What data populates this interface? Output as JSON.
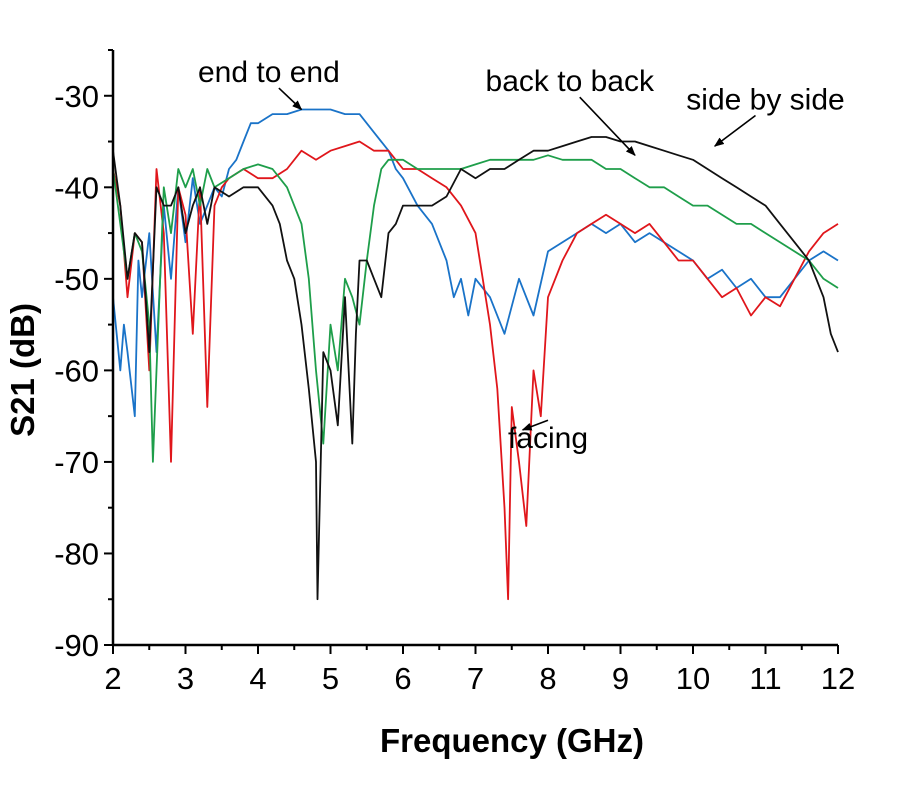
{
  "chart_data": {
    "type": "line",
    "title": "",
    "xlabel": "Frequency (GHz)",
    "ylabel": "S21 (dB)",
    "xlim": [
      2,
      12
    ],
    "ylim": [
      -90,
      -25
    ],
    "xticks": [
      2,
      3,
      4,
      5,
      6,
      7,
      8,
      9,
      10,
      11,
      12
    ],
    "yticks": [
      -90,
      -80,
      -70,
      -60,
      -50,
      -40,
      -30
    ],
    "grid": false,
    "legend": "none",
    "annotations": [
      {
        "text": "end to end",
        "x": 4.15,
        "y": -28.5,
        "ax": 4.6,
        "ay": -31.5
      },
      {
        "text": "back to back",
        "x": 8.3,
        "y": -29.5,
        "ax": 9.2,
        "ay": -36.5
      },
      {
        "text": "side by side",
        "x": 11.0,
        "y": -31.5,
        "ax": 10.3,
        "ay": -35.5
      },
      {
        "text": "facing",
        "x": 8.0,
        "y": -68.5,
        "ax": 7.65,
        "ay": -66.5
      }
    ],
    "series": [
      {
        "color": "#1a73c8",
        "x": [
          2.0,
          2.1,
          2.15,
          2.2,
          2.3,
          2.35,
          2.4,
          2.5,
          2.6,
          2.7,
          2.8,
          2.9,
          3.0,
          3.1,
          3.2,
          3.3,
          3.4,
          3.5,
          3.6,
          3.7,
          3.8,
          3.9,
          4.0,
          4.2,
          4.4,
          4.6,
          4.8,
          5.0,
          5.2,
          5.4,
          5.6,
          5.8,
          5.9,
          6.0,
          6.2,
          6.4,
          6.6,
          6.7,
          6.8,
          6.9,
          7.0,
          7.2,
          7.4,
          7.6,
          7.8,
          8.0,
          8.2,
          8.4,
          8.6,
          8.8,
          9.0,
          9.2,
          9.4,
          9.6,
          9.8,
          10.0,
          10.2,
          10.4,
          10.6,
          10.8,
          11.0,
          11.2,
          11.4,
          11.6,
          11.8,
          12.0
        ],
        "y": [
          -52,
          -60,
          -55,
          -58,
          -65,
          -48,
          -52,
          -45,
          -58,
          -42,
          -50,
          -40,
          -46,
          -39,
          -44,
          -42,
          -40,
          -41,
          -38,
          -37,
          -35,
          -33,
          -33,
          -32,
          -32,
          -31.5,
          -31.5,
          -31.5,
          -32,
          -32,
          -34,
          -36,
          -38,
          -39,
          -42,
          -44,
          -48,
          -52,
          -50,
          -54,
          -50,
          -52,
          -56,
          -50,
          -54,
          -47,
          -46,
          -45,
          -44,
          -45,
          -44,
          -46,
          -45,
          -46,
          -47,
          -48,
          -50,
          -49,
          -51,
          -50,
          -52,
          -52,
          -50,
          -48,
          -47,
          -48
        ]
      },
      {
        "color": "#e0161b",
        "x": [
          2.0,
          2.1,
          2.2,
          2.3,
          2.4,
          2.5,
          2.6,
          2.7,
          2.8,
          2.9,
          3.0,
          3.1,
          3.2,
          3.3,
          3.4,
          3.5,
          3.6,
          3.8,
          4.0,
          4.2,
          4.4,
          4.6,
          4.8,
          5.0,
          5.2,
          5.4,
          5.6,
          5.8,
          6.0,
          6.2,
          6.4,
          6.6,
          6.8,
          7.0,
          7.2,
          7.3,
          7.4,
          7.45,
          7.5,
          7.6,
          7.7,
          7.8,
          7.9,
          8.0,
          8.2,
          8.4,
          8.6,
          8.8,
          9.0,
          9.2,
          9.4,
          9.6,
          9.8,
          10.0,
          10.2,
          10.4,
          10.6,
          10.8,
          11.0,
          11.2,
          11.4,
          11.6,
          11.8,
          12.0
        ],
        "y": [
          -38,
          -42,
          -52,
          -45,
          -46,
          -60,
          -38,
          -45,
          -70,
          -40,
          -43,
          -56,
          -40,
          -64,
          -42,
          -40,
          -39,
          -38,
          -39,
          -39,
          -38,
          -36,
          -37,
          -36,
          -35.5,
          -35,
          -36,
          -36,
          -38,
          -38,
          -39,
          -40,
          -42,
          -45,
          -55,
          -62,
          -75,
          -85,
          -64,
          -70,
          -77,
          -60,
          -65,
          -52,
          -48,
          -45,
          -44,
          -43,
          -44,
          -45,
          -44,
          -46,
          -48,
          -48,
          -50,
          -52,
          -51,
          -54,
          -52,
          -53,
          -50,
          -47,
          -45,
          -44
        ]
      },
      {
        "color": "#1e9e4a",
        "x": [
          2.0,
          2.1,
          2.2,
          2.3,
          2.4,
          2.5,
          2.55,
          2.6,
          2.7,
          2.8,
          2.9,
          3.0,
          3.1,
          3.2,
          3.3,
          3.4,
          3.6,
          3.8,
          4.0,
          4.2,
          4.4,
          4.6,
          4.7,
          4.8,
          4.9,
          5.0,
          5.1,
          5.2,
          5.3,
          5.4,
          5.5,
          5.6,
          5.7,
          5.8,
          6.0,
          6.2,
          6.4,
          6.6,
          6.8,
          7.0,
          7.2,
          7.4,
          7.6,
          7.8,
          8.0,
          8.2,
          8.4,
          8.6,
          8.8,
          9.0,
          9.2,
          9.4,
          9.6,
          9.8,
          10.0,
          10.2,
          10.4,
          10.6,
          10.8,
          11.0,
          11.2,
          11.4,
          11.6,
          11.8,
          12.0
        ],
        "y": [
          -38,
          -44,
          -50,
          -45,
          -47,
          -55,
          -70,
          -60,
          -40,
          -45,
          -38,
          -40,
          -38,
          -42,
          -38,
          -40,
          -39,
          -38,
          -37.5,
          -38,
          -40,
          -44,
          -50,
          -60,
          -68,
          -55,
          -60,
          -50,
          -52,
          -55,
          -48,
          -42,
          -38,
          -37,
          -37,
          -38,
          -38,
          -38,
          -38,
          -37.5,
          -37,
          -37,
          -37,
          -37,
          -36.5,
          -37,
          -37,
          -37,
          -38,
          -38,
          -39,
          -40,
          -40,
          -41,
          -42,
          -42,
          -43,
          -44,
          -44,
          -45,
          -46,
          -47,
          -48,
          -50,
          -51
        ]
      },
      {
        "color": "#111111",
        "x": [
          2.0,
          2.1,
          2.2,
          2.3,
          2.4,
          2.5,
          2.6,
          2.7,
          2.8,
          2.9,
          3.0,
          3.1,
          3.2,
          3.3,
          3.4,
          3.6,
          3.8,
          4.0,
          4.2,
          4.3,
          4.4,
          4.5,
          4.6,
          4.7,
          4.8,
          4.82,
          4.9,
          5.0,
          5.1,
          5.2,
          5.3,
          5.35,
          5.4,
          5.5,
          5.6,
          5.7,
          5.8,
          5.9,
          6.0,
          6.2,
          6.4,
          6.6,
          6.8,
          7.0,
          7.2,
          7.4,
          7.6,
          7.8,
          8.0,
          8.2,
          8.4,
          8.6,
          8.8,
          9.0,
          9.2,
          9.4,
          9.6,
          9.8,
          10.0,
          10.2,
          10.4,
          10.6,
          10.8,
          11.0,
          11.2,
          11.4,
          11.6,
          11.8,
          11.9,
          12.0
        ],
        "y": [
          -36,
          -42,
          -50,
          -45,
          -46,
          -58,
          -40,
          -42,
          -42,
          -40,
          -45,
          -42,
          -40,
          -44,
          -40,
          -41,
          -40,
          -40,
          -42,
          -44,
          -48,
          -50,
          -55,
          -62,
          -70,
          -85,
          -58,
          -60,
          -66,
          -52,
          -68,
          -56,
          -48,
          -48,
          -50,
          -52,
          -45,
          -44,
          -42,
          -42,
          -42,
          -41,
          -38,
          -39,
          -38,
          -38,
          -37,
          -36,
          -36,
          -35.5,
          -35,
          -34.5,
          -34.5,
          -35,
          -35,
          -35.5,
          -36,
          -36.5,
          -37,
          -38,
          -39,
          -40,
          -41,
          -42,
          -44,
          -46,
          -48,
          -52,
          -56,
          -58
        ]
      }
    ]
  }
}
